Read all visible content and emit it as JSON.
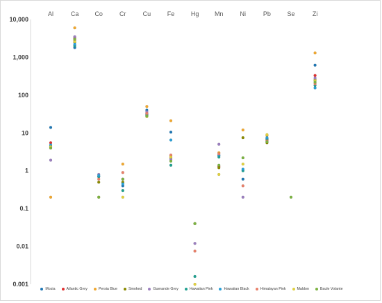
{
  "chart_data": {
    "type": "scatter",
    "title": "",
    "xlabel": "",
    "ylabel": "",
    "y_scale": "log",
    "ylim": [
      0.001,
      10000
    ],
    "y_ticks": [
      "0.001",
      "0.01",
      "0.1",
      "1",
      "10",
      "100",
      "1,000",
      "10,000"
    ],
    "y_tick_values": [
      0.001,
      0.01,
      0.1,
      1,
      10,
      100,
      1000,
      10000
    ],
    "categories": [
      "Al",
      "Ca",
      "Co",
      "Cr",
      "Cu",
      "Fe",
      "Hg",
      "Mn",
      "Ni",
      "Pb",
      "Se",
      "Zi"
    ],
    "legend_position": "bottom",
    "grid": false,
    "series": [
      {
        "name": "Mozia",
        "color": "#1f77b4",
        "values": [
          14,
          1800,
          0.7,
          0.4,
          40,
          10.5,
          null,
          2.5,
          0.6,
          7,
          null,
          620
        ]
      },
      {
        "name": "Atlantic Grey",
        "color": "#e03030",
        "values": [
          5.5,
          3200,
          null,
          null,
          32,
          2.5,
          null,
          1.3,
          null,
          6.5,
          null,
          330
        ]
      },
      {
        "name": "Persia Blue",
        "color": "#f0a830",
        "values": [
          0.2,
          6000,
          null,
          1.5,
          50,
          21,
          null,
          3,
          12,
          8.5,
          null,
          1300
        ]
      },
      {
        "name": "Smoked",
        "color": "#8a8a00",
        "values": [
          4.5,
          2500,
          0.5,
          0.5,
          30,
          2.2,
          0.04,
          1.2,
          7.5,
          5.5,
          null,
          250
        ]
      },
      {
        "name": "Guerande Grey",
        "color": "#9b7fbf",
        "values": [
          1.9,
          3500,
          0.8,
          0.6,
          36,
          2,
          0.012,
          5,
          0.2,
          6,
          null,
          280
        ]
      },
      {
        "name": "Hawaiian Pink",
        "color": "#20a090",
        "values": [
          4.2,
          2000,
          0.7,
          0.3,
          29,
          1.4,
          0.0016,
          2.3,
          1,
          6.8,
          null,
          180
        ]
      },
      {
        "name": "Hawaiian Black",
        "color": "#2a9fd6",
        "values": [
          4.8,
          2200,
          0.75,
          0.45,
          31,
          6.5,
          null,
          2.6,
          1.1,
          7.5,
          null,
          155
        ]
      },
      {
        "name": "Himalayan Pink",
        "color": "#e8806a",
        "values": [
          4,
          2800,
          0.6,
          0.9,
          33,
          2.6,
          0.0075,
          2.8,
          0.4,
          6.2,
          null,
          200
        ]
      },
      {
        "name": "Maldon",
        "color": "#e0d040",
        "values": [
          4.3,
          2600,
          0.2,
          0.2,
          27,
          2.3,
          0.001,
          0.8,
          1.5,
          9,
          null,
          240
        ]
      },
      {
        "name": "Baule Volante",
        "color": "#7cb342",
        "values": [
          4,
          3000,
          0.2,
          0.6,
          28,
          1.8,
          0.04,
          1.4,
          2.2,
          5.8,
          0.2,
          220
        ]
      }
    ]
  }
}
